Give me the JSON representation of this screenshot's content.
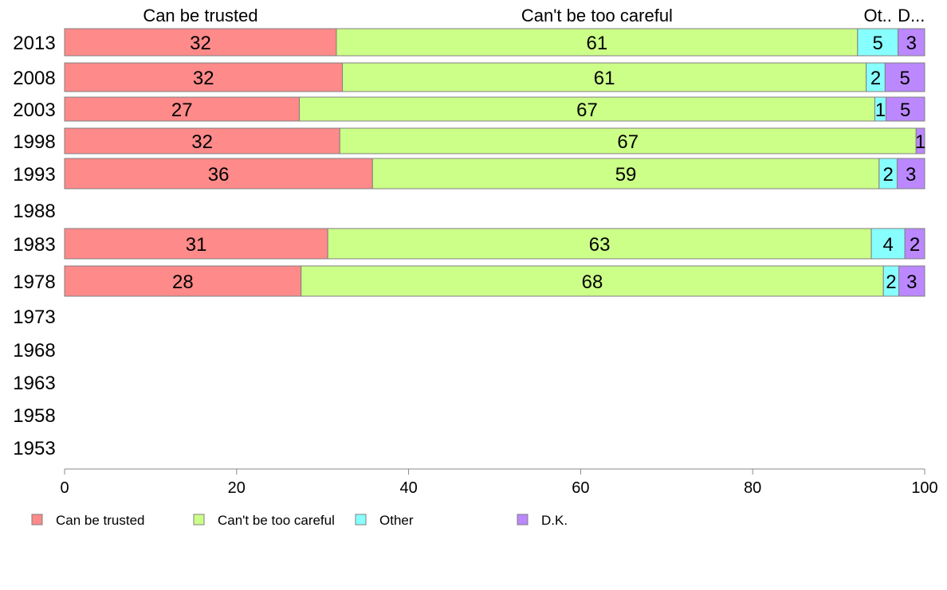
{
  "chart_data": {
    "type": "bar",
    "orientation": "horizontal",
    "stacked": true,
    "categories": [
      "2013",
      "2008",
      "2003",
      "1998",
      "1993",
      "1988",
      "1983",
      "1978",
      "1973",
      "1968",
      "1963",
      "1958",
      "1953"
    ],
    "series": [
      {
        "name": "Can be trusted",
        "header": "Can be trusted",
        "color": "#ff8a8a",
        "values": [
          32,
          32,
          27,
          32,
          36,
          null,
          31,
          28,
          null,
          null,
          null,
          null,
          null
        ]
      },
      {
        "name": "Can't be too careful",
        "header": "Can't be too careful",
        "color": "#ccff88",
        "values": [
          61,
          61,
          67,
          67,
          59,
          null,
          63,
          68,
          null,
          null,
          null,
          null,
          null
        ]
      },
      {
        "name": "Other",
        "header": "Ot..",
        "color": "#88ffff",
        "values": [
          5,
          2,
          1,
          null,
          2,
          null,
          4,
          2,
          null,
          null,
          null,
          null,
          null
        ]
      },
      {
        "name": "D.K.",
        "header": "D...",
        "color": "#bb88ff",
        "values": [
          3,
          5,
          5,
          1,
          3,
          null,
          2,
          3,
          null,
          null,
          null,
          null,
          null
        ]
      }
    ],
    "bar_shares": [
      [
        31.6,
        60.6,
        4.7,
        3.1
      ],
      [
        32.3,
        60.9,
        2.2,
        4.6
      ],
      [
        27.3,
        66.9,
        1.3,
        4.5
      ],
      [
        32.0,
        67.0,
        0,
        1.0
      ],
      [
        35.8,
        58.9,
        2.1,
        3.2
      ],
      null,
      [
        30.6,
        63.2,
        3.9,
        2.3
      ],
      [
        27.5,
        67.7,
        1.8,
        3.0
      ],
      null,
      null,
      null,
      null,
      null
    ],
    "xlim": [
      0,
      100
    ],
    "xticks": [
      "0",
      "20",
      "40",
      "60",
      "80",
      "100"
    ],
    "grid": false,
    "legend_position": "bottom"
  }
}
